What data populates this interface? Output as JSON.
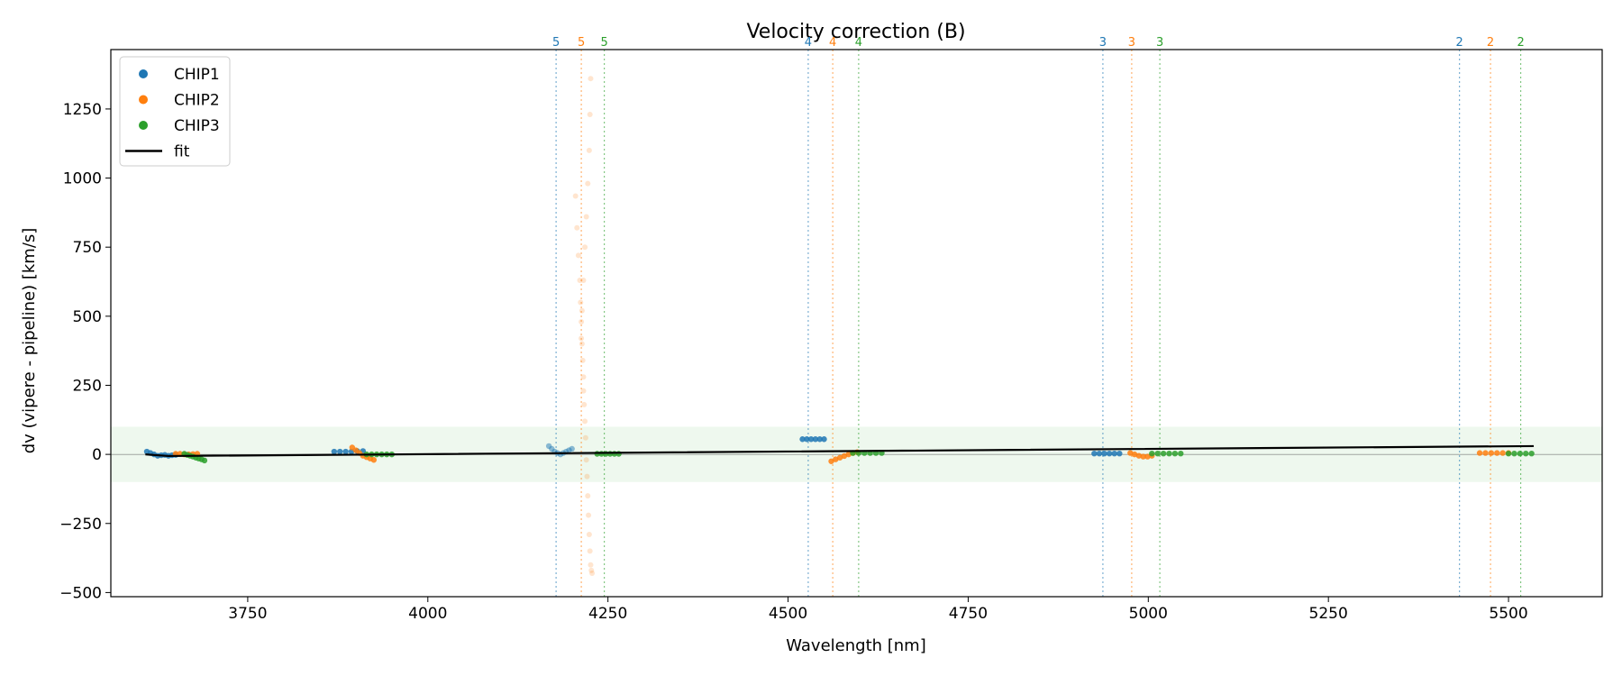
{
  "chart_data": {
    "type": "scatter",
    "title": "Velocity correction (B)",
    "xlabel": "Wavelength [nm]",
    "ylabel": "dv (vipere - pipeline) [km/s]",
    "xlim": [
      3560,
      5630
    ],
    "ylim": [
      -515,
      1465
    ],
    "xticks": [
      3750,
      4000,
      4250,
      4500,
      4750,
      5000,
      5250,
      5500
    ],
    "xtick_labels": [
      "3750",
      "4000",
      "4250",
      "4500",
      "4750",
      "5000",
      "5250",
      "5500"
    ],
    "yticks": [
      -500,
      -250,
      0,
      250,
      500,
      750,
      1000,
      1250
    ],
    "ytick_labels": [
      "−500",
      "−250",
      "0",
      "250",
      "500",
      "750",
      "1000",
      "1250"
    ],
    "grid": false,
    "legend_position": "top-left",
    "colors": {
      "CHIP1": "#1f77b4",
      "CHIP2": "#ff7f0e",
      "CHIP3": "#2ca02c",
      "fit": "#000000",
      "band": "#2ca02c"
    },
    "tolerance_band": [
      -100,
      100
    ],
    "zero_line": 0,
    "legend": [
      {
        "label": "CHIP1",
        "kind": "marker",
        "color": "#1f77b4"
      },
      {
        "label": "CHIP2",
        "kind": "marker",
        "color": "#ff7f0e"
      },
      {
        "label": "CHIP3",
        "kind": "marker",
        "color": "#2ca02c"
      },
      {
        "label": "fit",
        "kind": "line",
        "color": "#000000"
      }
    ],
    "order_lines": [
      {
        "order": "5",
        "x": 4178,
        "color": "#1f77b4"
      },
      {
        "order": "5",
        "x": 4213,
        "color": "#ff7f0e"
      },
      {
        "order": "5",
        "x": 4245,
        "color": "#2ca02c"
      },
      {
        "order": "4",
        "x": 4528,
        "color": "#1f77b4"
      },
      {
        "order": "4",
        "x": 4562,
        "color": "#ff7f0e"
      },
      {
        "order": "4",
        "x": 4598,
        "color": "#2ca02c"
      },
      {
        "order": "3",
        "x": 4937,
        "color": "#1f77b4"
      },
      {
        "order": "3",
        "x": 4977,
        "color": "#ff7f0e"
      },
      {
        "order": "3",
        "x": 5016,
        "color": "#2ca02c"
      },
      {
        "order": "2",
        "x": 5432,
        "color": "#1f77b4"
      },
      {
        "order": "2",
        "x": 5475,
        "color": "#ff7f0e"
      },
      {
        "order": "2",
        "x": 5517,
        "color": "#2ca02c"
      }
    ],
    "fit": {
      "x": [
        3608,
        3640,
        5535
      ],
      "y": [
        0,
        -6,
        30
      ]
    },
    "series": [
      {
        "name": "CHIP1",
        "color": "#1f77b4",
        "segments": [
          {
            "x": [
              3610,
              3615,
              3620,
              3625,
              3630,
              3635,
              3640,
              3645,
              3650
            ],
            "y": [
              10,
              5,
              0,
              -5,
              -3,
              -2,
              -5,
              -3,
              -2
            ]
          },
          {
            "x": [
              3870,
              3878,
              3886,
              3894,
              3902,
              3910
            ],
            "y": [
              10,
              10,
              10,
              10,
              12,
              12
            ]
          },
          {
            "x": [
              4168,
              4172,
              4176,
              4180,
              4184,
              4188,
              4192,
              4196,
              4200
            ],
            "y": [
              30,
              20,
              10,
              5,
              0,
              5,
              10,
              15,
              20
            ],
            "alpha": 0.5
          },
          {
            "x": [
              4520,
              4526,
              4532,
              4538,
              4544,
              4550
            ],
            "y": [
              55,
              55,
              55,
              55,
              55,
              55
            ]
          },
          {
            "x": [
              4925,
              4932,
              4939,
              4946,
              4953,
              4960
            ],
            "y": [
              3,
              3,
              3,
              3,
              3,
              3
            ]
          }
        ]
      },
      {
        "name": "CHIP2",
        "color": "#ff7f0e",
        "segments": [
          {
            "x": [
              3650,
              3656,
              3662,
              3668,
              3674,
              3680
            ],
            "y": [
              2,
              2,
              0,
              0,
              1,
              2
            ]
          },
          {
            "x": [
              3895,
              3900,
              3905,
              3910,
              3915,
              3920,
              3925
            ],
            "y": [
              25,
              15,
              5,
              -5,
              -10,
              -15,
              -20
            ]
          },
          {
            "x": [
              4560,
              4566,
              4572,
              4578,
              4584,
              4590,
              4596
            ],
            "y": [
              -25,
              -18,
              -12,
              -6,
              0,
              5,
              8
            ]
          },
          {
            "x": [
              4975,
              4981,
              4987,
              4993,
              4999,
              5005
            ],
            "y": [
              5,
              0,
              -5,
              -8,
              -8,
              -5
            ]
          },
          {
            "x": [
              5460,
              5468,
              5476,
              5484,
              5492,
              5500
            ],
            "y": [
              5,
              5,
              5,
              5,
              5,
              5
            ]
          }
        ]
      },
      {
        "name": "CHIP2 outliers",
        "color": "#ff7f0e",
        "alpha": 0.2,
        "points": {
          "x": [
            4205,
            4207,
            4209,
            4211,
            4212,
            4213,
            4214,
            4215,
            4216,
            4216,
            4217,
            4218,
            4219,
            4220,
            4221,
            4222,
            4223,
            4224,
            4225,
            4226,
            4227,
            4228,
            4226,
            4225,
            4224,
            4222,
            4220,
            4218,
            4216,
            4214,
            4213
          ],
          "y": [
            935,
            820,
            720,
            630,
            550,
            480,
            400,
            340,
            280,
            230,
            180,
            120,
            60,
            -20,
            -80,
            -150,
            -220,
            -290,
            -350,
            -400,
            -420,
            -430,
            1360,
            1230,
            1100,
            980,
            860,
            750,
            630,
            520,
            420
          ]
        }
      },
      {
        "name": "CHIP3",
        "color": "#2ca02c",
        "segments": [
          {
            "x": [
              3662,
              3666,
              3670,
              3674,
              3678,
              3682,
              3686,
              3690
            ],
            "y": [
              2,
              -2,
              -5,
              -8,
              -12,
              -15,
              -18,
              -22
            ]
          },
          {
            "x": [
              3915,
              3922,
              3929,
              3936,
              3943,
              3950
            ],
            "y": [
              0,
              0,
              0,
              0,
              0,
              0
            ]
          },
          {
            "x": [
              4235,
              4241,
              4247,
              4253,
              4259,
              4265
            ],
            "y": [
              2,
              2,
              2,
              2,
              2,
              2
            ]
          },
          {
            "x": [
              4590,
              4598,
              4606,
              4614,
              4622,
              4630
            ],
            "y": [
              5,
              5,
              5,
              5,
              5,
              5
            ]
          },
          {
            "x": [
              5005,
              5013,
              5021,
              5029,
              5037,
              5045
            ],
            "y": [
              3,
              3,
              3,
              3,
              3,
              3
            ]
          },
          {
            "x": [
              5500,
              5508,
              5516,
              5524,
              5532
            ],
            "y": [
              3,
              3,
              3,
              3,
              3
            ]
          }
        ]
      }
    ]
  }
}
